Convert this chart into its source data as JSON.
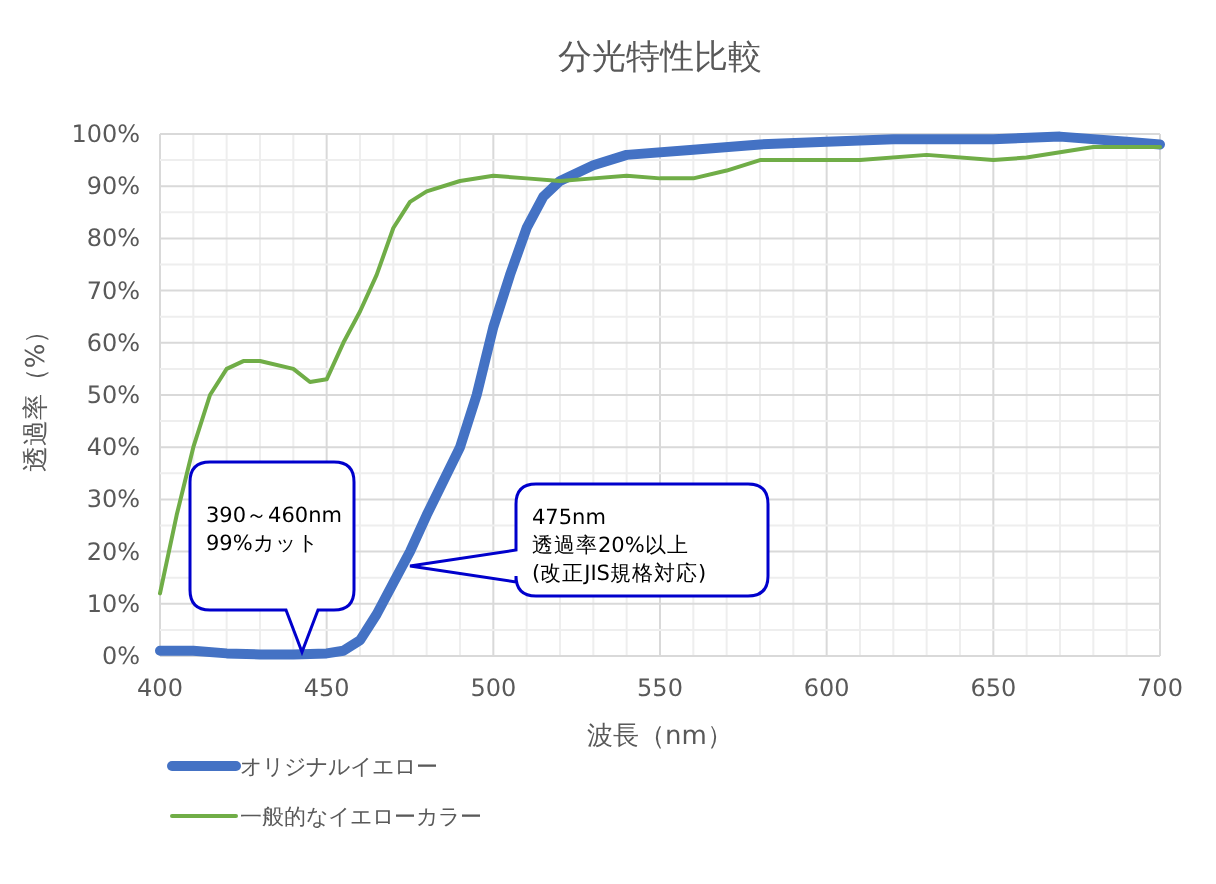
{
  "chart_data": {
    "type": "line",
    "title": "分光特性比較",
    "xlabel": "波長（nm）",
    "ylabel": "透過率（%）",
    "xlim": [
      400,
      700
    ],
    "xticks": [
      400,
      450,
      500,
      550,
      600,
      650,
      700
    ],
    "ylim": [
      0,
      100
    ],
    "yticks": [
      {
        "value": 0,
        "label": "0%"
      },
      {
        "value": 10,
        "label": "10%"
      },
      {
        "value": 20,
        "label": "20%"
      },
      {
        "value": 30,
        "label": "30%"
      },
      {
        "value": 40,
        "label": "40%"
      },
      {
        "value": 50,
        "label": "50%"
      },
      {
        "value": 60,
        "label": "60%"
      },
      {
        "value": 70,
        "label": "70%"
      },
      {
        "value": 80,
        "label": "80%"
      },
      {
        "value": 90,
        "label": "90%"
      },
      {
        "value": 100,
        "label": "100%"
      }
    ],
    "grid": true,
    "legend": "bottom",
    "marker": "none",
    "line_style": "solid",
    "series": [
      {
        "name": "オリジナルイエロー",
        "color": "#4472c4",
        "x": [
          400,
          410,
          420,
          430,
          440,
          450,
          455,
          460,
          465,
          470,
          475,
          480,
          490,
          495,
          500,
          505,
          510,
          515,
          520,
          530,
          540,
          560,
          580,
          600,
          620,
          650,
          670,
          690,
          700
        ],
        "values": [
          1,
          1,
          0.5,
          0.3,
          0.3,
          0.5,
          1,
          3,
          8,
          14,
          20,
          27,
          40,
          50,
          63,
          73,
          82,
          88,
          91,
          94,
          96,
          97,
          98,
          98.5,
          99,
          99,
          99.5,
          98.5,
          98
        ]
      },
      {
        "name": "一般的なイエローカラー",
        "color": "#70ad47",
        "x": [
          400,
          405,
          410,
          415,
          420,
          425,
          430,
          440,
          445,
          450,
          455,
          460,
          465,
          470,
          475,
          480,
          490,
          500,
          510,
          520,
          530,
          540,
          550,
          560,
          570,
          580,
          600,
          610,
          630,
          650,
          660,
          680,
          700
        ],
        "values": [
          12,
          27,
          40,
          50,
          55,
          56.5,
          56.5,
          55,
          52.5,
          53,
          60,
          66,
          73,
          82,
          87,
          89,
          91,
          92,
          91.5,
          91,
          91.5,
          92,
          91.5,
          91.5,
          93,
          95,
          95,
          95,
          96,
          95,
          95.5,
          97.5,
          97.5
        ]
      }
    ],
    "annotations": [
      "390～460nm\n99%カット",
      "475nm\n透過率20%以上\n(改正JIS規格対応)"
    ]
  }
}
